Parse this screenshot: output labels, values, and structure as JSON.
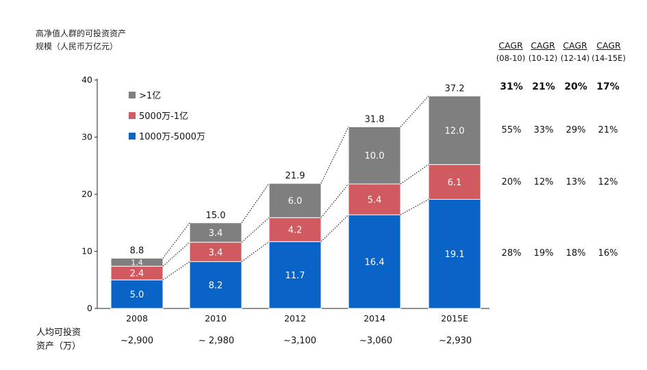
{
  "title_lines": [
    "高净值人群的可投资资产",
    "规模（人民币万亿元）"
  ],
  "colors": {
    "top": "#7f7f7f",
    "mid": "#d05a5f",
    "bottom": "#0a64c8",
    "connector": "#222222"
  },
  "chart_data": {
    "type": "bar",
    "stacked": true,
    "categories": [
      "2008",
      "2010",
      "2012",
      "2014",
      "2015E"
    ],
    "series": [
      {
        "name": "1000万-5000万",
        "values": [
          5.0,
          8.2,
          11.7,
          16.4,
          19.1
        ]
      },
      {
        "name": "5000万-1亿",
        "values": [
          2.4,
          3.4,
          4.2,
          5.4,
          6.1
        ]
      },
      {
        "name": ">1亿",
        "values": [
          1.4,
          3.4,
          6.0,
          10.0,
          12.0
        ]
      }
    ],
    "totals": [
      "8.8",
      "15.0",
      "21.9",
      "31.8",
      "37.2"
    ],
    "segment_labels": [
      [
        "5.0",
        "8.2",
        "11.7",
        "16.4",
        "19.1"
      ],
      [
        "2.4",
        "3.4",
        "4.2",
        "5.4",
        "6.1"
      ],
      [
        "1.4",
        "3.4",
        "6.0",
        "10.0",
        "12.0"
      ]
    ],
    "yticks": [
      "0",
      "10",
      "20",
      "30",
      "40"
    ],
    "ylim": [
      0,
      40
    ],
    "legend": [
      {
        "label": ">1亿",
        "color": "#7f7f7f"
      },
      {
        "label": "5000万-1亿",
        "color": "#d05a5f"
      },
      {
        "label": "1000万-5000万",
        "color": "#0a64c8"
      }
    ],
    "legend_position": "top-left"
  },
  "cagr": {
    "headers": [
      {
        "label": "CAGR",
        "range": "(08-10)"
      },
      {
        "label": "CAGR",
        "range": "(10-12)"
      },
      {
        "label": "CAGR",
        "range": "(12-14)"
      },
      {
        "label": "CAGR",
        "range": "(14-15E)"
      }
    ],
    "rows": [
      [
        "31%",
        "21%",
        "20%",
        "17%"
      ],
      [
        "55%",
        "33%",
        "29%",
        "21%"
      ],
      [
        "20%",
        "12%",
        "13%",
        "12%"
      ],
      [
        "28%",
        "19%",
        "18%",
        "16%"
      ]
    ]
  },
  "per_capita": {
    "label_lines": [
      "人均可投资",
      "资产（万）"
    ],
    "values": [
      "~2,900",
      "~ 2,980",
      "~3,100",
      "~3,060",
      "~2,930"
    ]
  }
}
